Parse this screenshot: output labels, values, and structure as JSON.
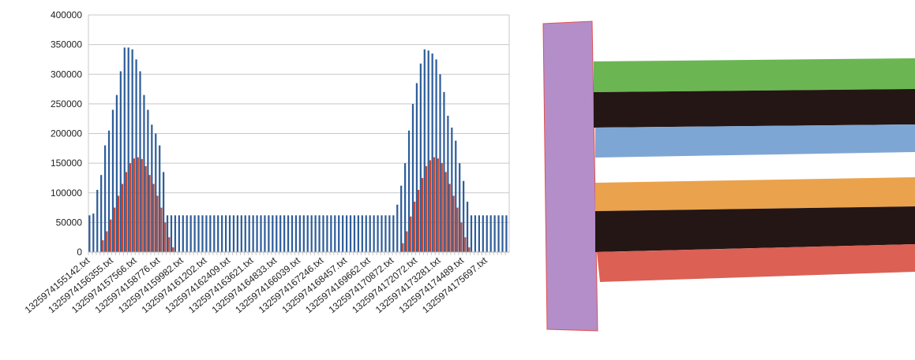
{
  "chart_data": {
    "type": "bar",
    "categories": [
      "1325974155142.txt",
      null,
      null,
      null,
      null,
      null,
      "1325974156355.txt",
      null,
      null,
      null,
      null,
      null,
      "1325974157566.txt",
      null,
      null,
      null,
      null,
      null,
      "1325974158776.txt",
      null,
      null,
      null,
      null,
      null,
      "1325974159982.txt",
      null,
      null,
      null,
      null,
      null,
      "1325974161202.txt",
      null,
      null,
      null,
      null,
      null,
      "1325974162409.txt",
      null,
      null,
      null,
      null,
      null,
      "1325974163621.txt",
      null,
      null,
      null,
      null,
      null,
      "1325974164833.txt",
      null,
      null,
      null,
      null,
      null,
      "1325974166039.txt",
      null,
      null,
      null,
      null,
      null,
      "1325974167246.txt",
      null,
      null,
      null,
      null,
      null,
      "1325974168457.txt",
      null,
      null,
      null,
      null,
      null,
      "1325974169662.txt",
      null,
      null,
      null,
      null,
      null,
      "1325974170872.txt",
      null,
      null,
      null,
      null,
      null,
      "1325974172072.txt",
      null,
      null,
      null,
      null,
      null,
      "1325974173281.txt",
      null,
      null,
      null,
      null,
      null,
      "1325974174489.txt",
      null,
      null,
      null,
      null,
      null,
      "1325974175697.txt",
      null,
      null,
      null,
      null,
      null
    ],
    "series": [
      {
        "color": "#2e5d9a",
        "values": [
          62000,
          65000,
          105000,
          130000,
          180000,
          205000,
          240000,
          265000,
          305000,
          345000,
          345000,
          342000,
          325000,
          305000,
          265000,
          240000,
          215000,
          200000,
          180000,
          135000,
          62000,
          62000,
          62000,
          62000,
          62000,
          62000,
          62000,
          62000,
          62000,
          62000,
          62000,
          62000,
          62000,
          62000,
          62000,
          62000,
          62000,
          62000,
          62000,
          62000,
          62000,
          62000,
          62000,
          62000,
          62000,
          62000,
          62000,
          62000,
          62000,
          62000,
          62000,
          62000,
          62000,
          62000,
          62000,
          62000,
          62000,
          62000,
          62000,
          62000,
          62000,
          62000,
          62000,
          62000,
          62000,
          62000,
          62000,
          62000,
          62000,
          62000,
          62000,
          62000,
          62000,
          62000,
          62000,
          62000,
          62000,
          62000,
          62000,
          80000,
          112000,
          150000,
          205000,
          250000,
          285000,
          318000,
          342000,
          340000,
          335000,
          325000,
          300000,
          270000,
          230000,
          210000,
          188000,
          150000,
          120000,
          85000,
          62000,
          62000,
          62000,
          62000,
          62000,
          62000,
          62000,
          62000,
          62000,
          62000
        ]
      },
      {
        "color": "#c6472f",
        "values": [
          0,
          0,
          0,
          20000,
          35000,
          55000,
          75000,
          95000,
          115000,
          135000,
          150000,
          158000,
          160000,
          157000,
          145000,
          130000,
          115000,
          95000,
          75000,
          50000,
          25000,
          8000,
          0,
          0,
          0,
          0,
          0,
          0,
          0,
          0,
          0,
          0,
          0,
          0,
          0,
          0,
          0,
          0,
          0,
          0,
          0,
          0,
          0,
          0,
          0,
          0,
          0,
          0,
          0,
          0,
          0,
          0,
          0,
          0,
          0,
          0,
          0,
          0,
          0,
          0,
          0,
          0,
          0,
          0,
          0,
          0,
          0,
          0,
          0,
          0,
          0,
          0,
          0,
          0,
          0,
          0,
          0,
          0,
          0,
          0,
          15000,
          35000,
          60000,
          85000,
          105000,
          125000,
          145000,
          155000,
          160000,
          158000,
          150000,
          135000,
          115000,
          95000,
          75000,
          50000,
          25000,
          8000,
          0,
          0,
          0,
          0,
          0,
          0,
          0,
          0,
          0,
          0
        ]
      }
    ],
    "ylim": [
      0,
      400000
    ],
    "yticks": [
      0,
      50000,
      100000,
      150000,
      200000,
      250000,
      300000,
      350000,
      400000
    ],
    "grid": true
  }
}
